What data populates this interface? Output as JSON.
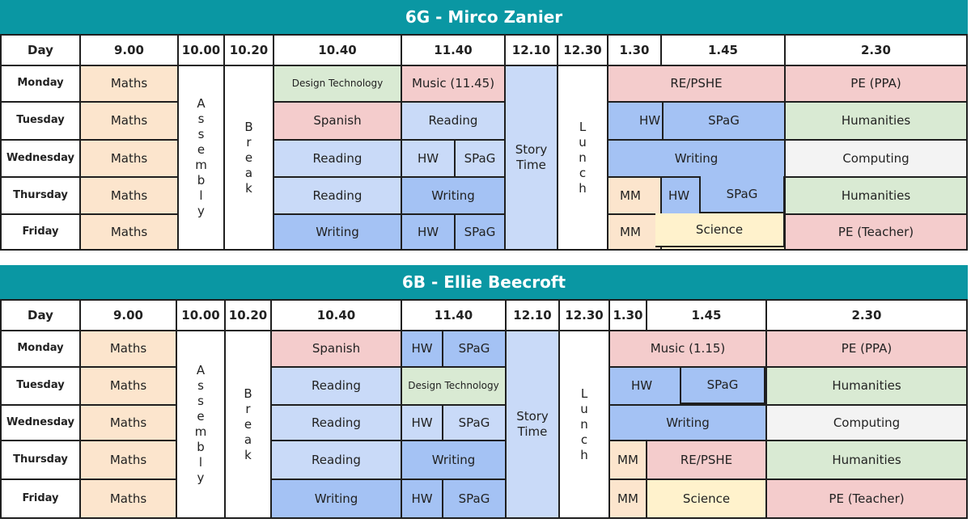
{
  "timetables": [
    {
      "title": "6G - Mirco Zanier",
      "headers": [
        "Day",
        "9.00",
        "10.00",
        "10.20",
        "10.40",
        "11.40",
        "12.10",
        "12.30",
        "1.30",
        "1.45",
        "2.30"
      ],
      "days": [
        "Monday",
        "Tuesday",
        "Wednesday",
        "Thursday",
        "Friday"
      ],
      "fixed": {
        "maths": "Maths",
        "assembly": "Assembly",
        "break": "Break",
        "story": "Story Time",
        "lunch": "Lunch"
      },
      "lessons": {
        "mon_1040": "Design Technology",
        "mon_1140": "Music (11.45)",
        "mon_130": "RE/PSHE",
        "mon_230": "PE (PPA)",
        "tue_1040": "Spanish",
        "tue_1140": "Reading",
        "tue_130": "HW",
        "tue_145": "SPaG",
        "tue_230": "Humanities",
        "wed_1040": "Reading",
        "wed_1140a": "HW",
        "wed_1140b": "SPaG",
        "wed_130": "Writing",
        "wed_230": "Computing",
        "thu_1040": "Reading",
        "thu_1140": "Writing",
        "thu_130": "MM",
        "thu_145a": "HW",
        "thu_145b": "SPaG",
        "thu_230": "Humanities",
        "fri_1040": "Writing",
        "fri_1140a": "HW",
        "fri_1140b": "SPaG",
        "fri_130": "MM",
        "fri_145": "Science",
        "fri_230": "PE (Teacher)"
      },
      "colors": {
        "banner": "#0a97a3",
        "maths": "#fce5cd",
        "dt": "#d9ead3",
        "pink": "#f4cccc",
        "light_blue": "#c9daf8",
        "blue": "#a4c2f4",
        "grey": "#f3f3f3",
        "yellow": "#fff2cc"
      }
    },
    {
      "title": "6B - Ellie Beecroft",
      "headers": [
        "Day",
        "9.00",
        "10.00",
        "10.20",
        "10.40",
        "11.40",
        "12.10",
        "12.30",
        "1.30",
        "1.45",
        "2.30"
      ],
      "days": [
        "Monday",
        "Tuesday",
        "Wednesday",
        "Thursday",
        "Friday"
      ],
      "fixed": {
        "maths": "Maths",
        "assembly": "Assembly",
        "break": "Break",
        "story": "Story Time",
        "lunch": "Lunch"
      },
      "lessons": {
        "mon_1040": "Spanish",
        "mon_1140a": "HW",
        "mon_1140b": "SPaG",
        "mon_130": "Music (1.15)",
        "mon_230": "PE (PPA)",
        "tue_1040": "Reading",
        "tue_1140": "Design Technology",
        "tue_130": "HW",
        "tue_145": "SPaG",
        "tue_230": "Humanities",
        "wed_1040": "Reading",
        "wed_1140a": "HW",
        "wed_1140b": "SPaG",
        "wed_130": "Writing",
        "wed_230": "Computing",
        "thu_1040": "Reading",
        "thu_1140": "Writing",
        "thu_130": "MM",
        "thu_145": "RE/PSHE",
        "thu_230": "Humanities",
        "fri_1040": "Writing",
        "fri_1140a": "HW",
        "fri_1140b": "SPaG",
        "fri_130": "MM",
        "fri_145": "Science",
        "fri_230": "PE (Teacher)"
      }
    }
  ]
}
